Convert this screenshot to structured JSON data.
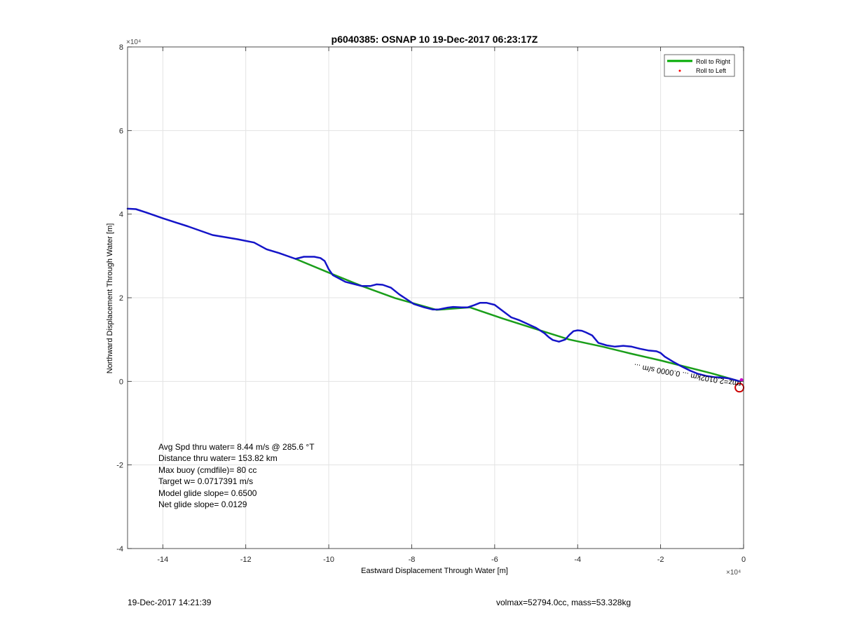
{
  "chart_data": {
    "type": "line",
    "title": "p6040385: OSNAP 10 19-Dec-2017 06:23:17Z",
    "xlabel": "Eastward Displacement Through Water [m]",
    "ylabel": "Northward Displacement Through Water [m]",
    "x_exponent_label": "×10⁴",
    "y_exponent_label": "×10⁴",
    "xlim": [
      -148500,
      0
    ],
    "ylim": [
      -40000,
      80000
    ],
    "xticks": [
      -140000,
      -120000,
      -100000,
      -80000,
      -60000,
      -40000,
      -20000,
      0
    ],
    "xtick_labels": [
      "-14",
      "-12",
      "-10",
      "-8",
      "-6",
      "-4",
      "-2",
      "0"
    ],
    "yticks": [
      -40000,
      -20000,
      0,
      20000,
      40000,
      60000,
      80000
    ],
    "ytick_labels": [
      "-4",
      "-2",
      "0",
      "2",
      "4",
      "6",
      "8"
    ],
    "grid": true,
    "legend_placement": "top-right",
    "legend": [
      {
        "name": "Roll to Right",
        "color": "#00aa00",
        "marker": "line"
      },
      {
        "name": "Roll to Left",
        "color": "#ff0000",
        "marker": "dot"
      }
    ],
    "series": [
      {
        "name": "Roll to Right",
        "color": "#1a9e1a",
        "x": [
          -108000,
          -100000,
          -92000,
          -84000,
          -74000,
          -66000,
          -58000,
          -50000,
          -42000,
          -34000,
          -27000,
          -20000,
          -14000,
          -8000,
          -3000,
          -1000
        ],
        "y": [
          29300,
          26000,
          22800,
          19900,
          17100,
          17700,
          15000,
          12500,
          10000,
          8300,
          6600,
          5000,
          3500,
          2000,
          600,
          0
        ]
      },
      {
        "name": "track",
        "color": "#1414c8",
        "x": [
          -148500,
          -146500,
          -144000,
          -140000,
          -134000,
          -128000,
          -122000,
          -118000,
          -115000,
          -112000,
          -108000,
          -106000,
          -103500,
          -102000,
          -101000,
          -100000,
          -99000,
          -96000,
          -92000,
          -90000,
          -88500,
          -87000,
          -85000,
          -83000,
          -81000,
          -79500,
          -77000,
          -75000,
          -73500,
          -71500,
          -70000,
          -68000,
          -66500,
          -65000,
          -63500,
          -62000,
          -60000,
          -58000,
          -56000,
          -54000,
          -52000,
          -50000,
          -48000,
          -47000,
          -46000,
          -44500,
          -43000,
          -42000,
          -41000,
          -40000,
          -39000,
          -38000,
          -36500,
          -35000,
          -33000,
          -31000,
          -29000,
          -27000,
          -25000,
          -23000,
          -21000,
          -20000,
          -19000,
          -17000,
          -15000,
          -13000,
          -11000,
          -9000,
          -7000,
          -5000,
          -3500,
          -2000,
          -1000
        ],
        "y": [
          41300,
          41200,
          40400,
          39000,
          37100,
          35000,
          34000,
          33200,
          31600,
          30700,
          29300,
          29800,
          29800,
          29500,
          28800,
          26800,
          25400,
          23800,
          22800,
          22800,
          23200,
          23100,
          22400,
          20800,
          19500,
          18500,
          17700,
          17200,
          17200,
          17600,
          17800,
          17700,
          17700,
          18200,
          18800,
          18800,
          18300,
          16800,
          15300,
          14600,
          13700,
          12800,
          11500,
          10600,
          9900,
          9500,
          10000,
          11100,
          12000,
          12200,
          12100,
          11700,
          11000,
          9200,
          8600,
          8300,
          8500,
          8300,
          7800,
          7400,
          7200,
          6800,
          5900,
          4700,
          3600,
          2600,
          1800,
          1300,
          1000,
          900,
          700,
          300,
          0
        ]
      }
    ],
    "annotations": {
      "slope_label": "rmz=2.0102km  ... 0.0000 s/m  ...",
      "stats": [
        "Avg Spd thru water=  8.44 m/s @ 285.6 °T",
        "Distance thru water= 153.82 km",
        "Max buoy (cmdfile)= 80 cc",
        "Target w= 0.0717391 m/s",
        "Model glide slope= 0.6500",
        "Net glide slope= 0.0129"
      ],
      "end_marker": {
        "x": -1000,
        "y": -1500,
        "color": "#cc0000"
      }
    }
  },
  "footer": {
    "timestamp": "19-Dec-2017 14:21:39",
    "info": "volmax=52794.0cc, mass=53.328kg"
  }
}
